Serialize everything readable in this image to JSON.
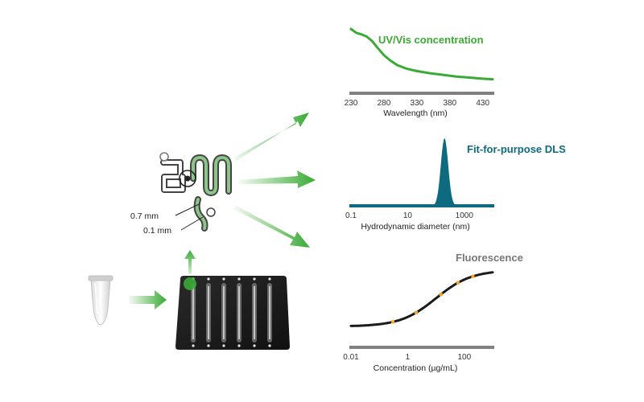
{
  "colors": {
    "green": "#3aaa35",
    "teal": "#0e6a7e",
    "grey_title": "#777777",
    "black_curve": "#1a1a1a",
    "marker_orange": "#f5a623",
    "axis_grey": "#808080"
  },
  "icons": [
    "microcentrifuge-tube-icon",
    "microfluidic-chip-icon",
    "well-plate-icon",
    "flow-arrow-icon"
  ],
  "chip": {
    "dim_labels": [
      "0.7 mm",
      "0.1 mm"
    ]
  },
  "chart_data": [
    {
      "type": "line",
      "title": "UV/Vis concentration",
      "xlabel": "Wavelength (nm)",
      "ylabel": "",
      "xticks": [
        "230",
        "280",
        "330",
        "380",
        "430"
      ],
      "xlim": [
        230,
        445
      ],
      "ylim": [
        0,
        1
      ],
      "x": [
        230,
        238,
        246,
        254,
        262,
        270,
        280,
        290,
        300,
        315,
        330,
        350,
        370,
        390,
        410,
        430,
        445
      ],
      "y": [
        1.0,
        0.93,
        0.9,
        0.86,
        0.78,
        0.66,
        0.52,
        0.42,
        0.34,
        0.27,
        0.23,
        0.19,
        0.16,
        0.13,
        0.11,
        0.09,
        0.08
      ],
      "color": "#3aaa35"
    },
    {
      "type": "area",
      "title": "Fit-for-purpose DLS",
      "xlabel": "Hydrodynamic diameter (nm)",
      "ylabel": "",
      "xscale": "log",
      "xticks": [
        "0.1",
        "10",
        "1000"
      ],
      "xlim": [
        0.1,
        10000
      ],
      "ylim": [
        0,
        1
      ],
      "peak_center": 200,
      "peak_width_log10": 0.13,
      "color": "#0e6a7e"
    },
    {
      "type": "line",
      "title": "Fluorescence",
      "xlabel": "Concentration (µg/mL)",
      "ylabel": "",
      "xscale": "log",
      "xticks": [
        "0.01",
        "1",
        "100"
      ],
      "xlim": [
        0.01,
        1000
      ],
      "ylim": [
        0,
        1
      ],
      "sigmoid_center": 10,
      "markers_x": [
        0.3,
        2,
        15,
        60,
        200
      ],
      "color": "#1a1a1a",
      "marker_color": "#f5a623"
    }
  ]
}
